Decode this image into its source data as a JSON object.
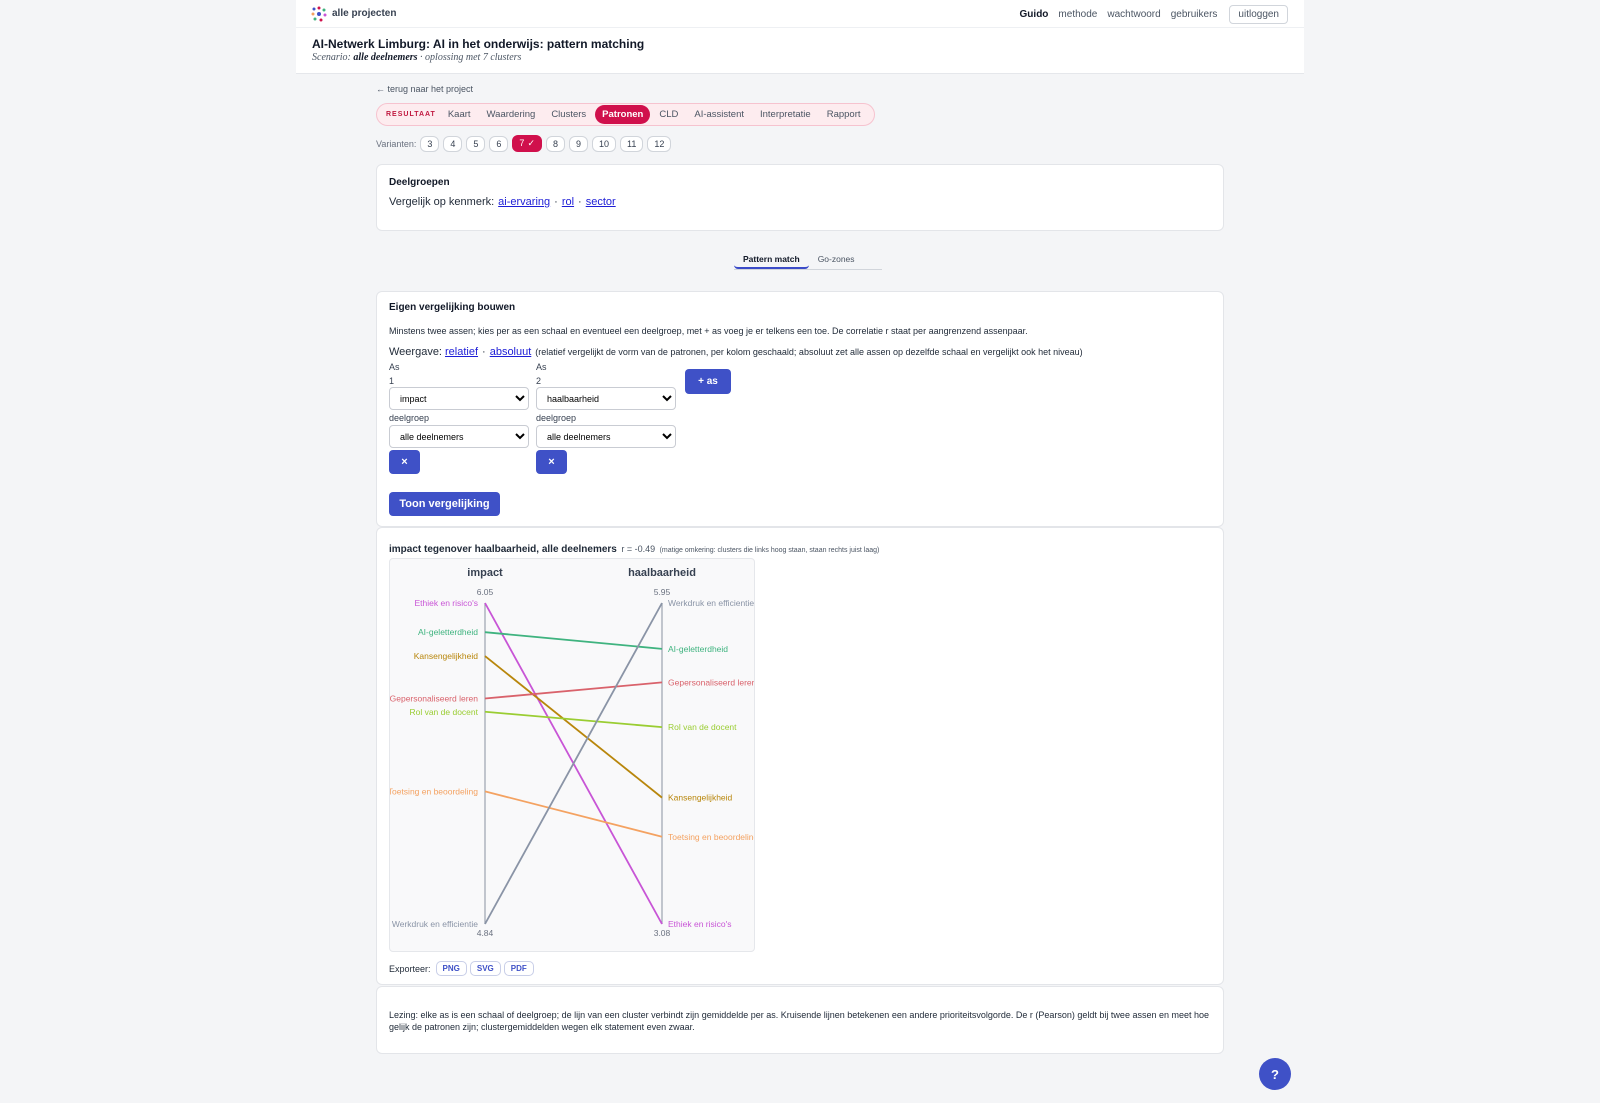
{
  "nav": {
    "brand": "alle projecten",
    "user": "Guido",
    "links": [
      "methode",
      "wachtwoord",
      "gebruikers"
    ],
    "logout": "uitloggen"
  },
  "header": {
    "title": "AI-Netwerk Limburg: AI in het onderwijs: pattern matching",
    "scenario_label": "Scenario:",
    "scenario": "alle deelnemers",
    "solution": "· oplossing met 7 clusters"
  },
  "back_link": "← terug naar het project",
  "result_tabs": {
    "label": "RESULTAAT",
    "tabs": [
      "Kaart",
      "Waardering",
      "Clusters",
      "Patronen",
      "CLD",
      "AI-assistent",
      "Interpretatie",
      "Rapport"
    ],
    "active": 3
  },
  "variants": {
    "label": "Varianten:",
    "options": [
      "3",
      "4",
      "5",
      "6",
      "7",
      "8",
      "9",
      "10",
      "11",
      "12"
    ],
    "active": 4,
    "active_mark": "✓"
  },
  "subgroups": {
    "title": "Deelgroepen",
    "prompt": "Vergelijk op kenmerk:",
    "links": [
      "ai-ervaring",
      "rol",
      "sector"
    ],
    "separator": "·"
  },
  "view_tabs": {
    "tabs": [
      "Pattern match",
      "Go-zones"
    ],
    "active": 0
  },
  "builder": {
    "title": "Eigen vergelijking bouwen",
    "intro": "Minstens twee assen; kies per as een schaal en eventueel een deelgroep, met + as voeg je er telkens een toe. De correlatie r staat per aangrenzend assenpaar.",
    "display_label": "Weergave:",
    "display_options": [
      "relatief",
      "absoluut"
    ],
    "separator": "·",
    "display_note": "(relatief vergelijkt de vorm van de patronen, per kolom geschaald; absoluut zet alle assen op dezelfde schaal en vergelijkt ook het niveau)",
    "axes": [
      {
        "label": "As",
        "number": "1",
        "scale": "impact",
        "group_label": "deelgroep",
        "group": "alle deelnemers",
        "remove": "×"
      },
      {
        "label": "As",
        "number": "2",
        "scale": "haalbaarheid",
        "group_label": "deelgroep",
        "group": "alle deelnemers",
        "remove": "×"
      }
    ],
    "add_axis": "+ as",
    "submit": "Toon vergelijking"
  },
  "chart_data": {
    "type": "slope",
    "title": "impact tegenover haalbaarheid, alle deelnemers",
    "correlation": "r = -0.49",
    "correlation_note": "(matige omkering: clusters die links hoog staan, staan rechts juist laag)",
    "axes": [
      {
        "name": "impact",
        "lim": [
          4.84,
          6.05
        ]
      },
      {
        "name": "haalbaarheid",
        "lim": [
          3.08,
          5.95
        ]
      }
    ],
    "series": [
      {
        "name": "Ethiek en risico's",
        "color": "#c855d6",
        "values": [
          6.05,
          3.08
        ]
      },
      {
        "name": "AI-geletterdheid",
        "color": "#3fb37f",
        "values": [
          5.94,
          5.54
        ]
      },
      {
        "name": "Kansengelijkheid",
        "color": "#b8860b",
        "values": [
          5.85,
          4.21
        ]
      },
      {
        "name": "Gepersonaliseerd leren",
        "color": "#d9626b",
        "values": [
          5.69,
          5.24
        ]
      },
      {
        "name": "Rol van de docent",
        "color": "#9acd32",
        "values": [
          5.64,
          4.84
        ]
      },
      {
        "name": "Toetsing en beoordeling",
        "color": "#f4a261",
        "values": [
          5.34,
          3.86
        ]
      },
      {
        "name": "Werkdruk en efficientie",
        "color": "#8a94a6",
        "values": [
          4.84,
          5.95
        ]
      }
    ],
    "export_label": "Exporteer:",
    "export": [
      "PNG",
      "SVG",
      "PDF"
    ]
  },
  "reading": "Lezing: elke as is een schaal of deelgroep; de lijn van een cluster verbindt zijn gemiddelde per as. Kruisende lijnen betekenen een andere prioriteitsvolgorde. De r (Pearson) geldt bij twee assen en meet hoe gelijk de patronen zijn; clustergemiddelden wegen elk statement even zwaar.",
  "help": "?"
}
